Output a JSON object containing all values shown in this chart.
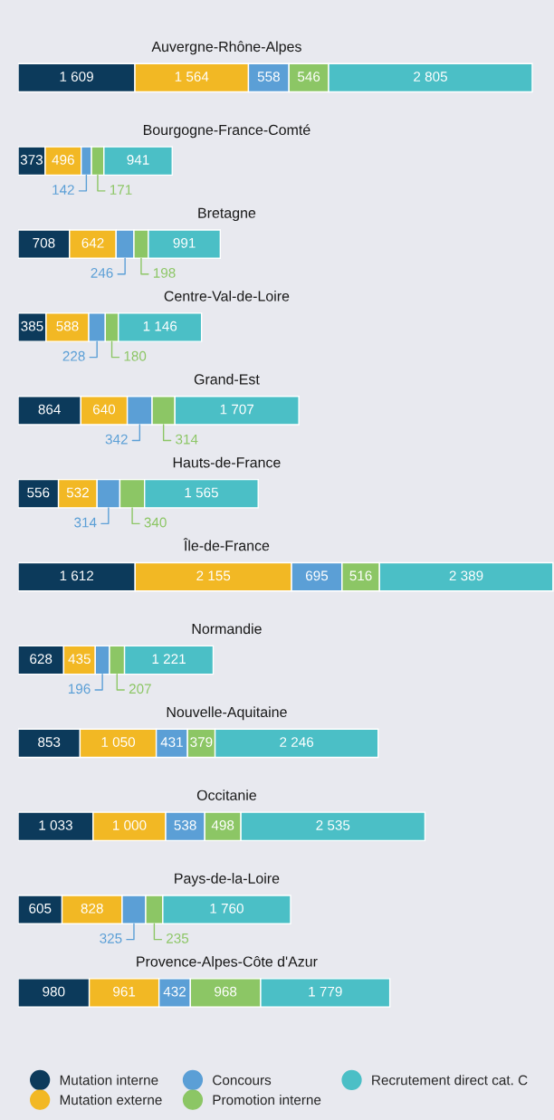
{
  "chart_data": {
    "type": "bar",
    "orientation": "horizontal",
    "stacked": true,
    "legend": "bottom",
    "categories": [
      "Auvergne-Rhône-Alpes",
      "Bourgogne-France-Comté",
      "Bretagne",
      "Centre-Val-de-Loire",
      "Grand-Est",
      "Hauts-de-France",
      "Île-de-France",
      "Normandie",
      "Nouvelle-Aquitaine",
      "Occitanie",
      "Pays-de-la-Loire",
      "Provence-Alpes-Côte d'Azur"
    ],
    "series": [
      {
        "name": "Mutation interne",
        "color": "#0c3a5b",
        "values": [
          1609,
          373,
          708,
          385,
          864,
          556,
          1612,
          628,
          853,
          1033,
          605,
          980
        ],
        "value_labels": [
          "1 609",
          "373",
          "708",
          "385",
          "864",
          "556",
          "1 612",
          "628",
          "853",
          "1 033",
          "605",
          "980"
        ]
      },
      {
        "name": "Mutation externe",
        "color": "#f2b824",
        "values": [
          1564,
          496,
          642,
          588,
          640,
          532,
          2155,
          435,
          1050,
          1000,
          828,
          961
        ],
        "value_labels": [
          "1 564",
          "496",
          "642",
          "588",
          "640",
          "532",
          "2 155",
          "435",
          "1 050",
          "1 000",
          "828",
          "961"
        ]
      },
      {
        "name": "Concours",
        "color": "#5b9fd6",
        "values": [
          558,
          142,
          246,
          228,
          342,
          314,
          695,
          196,
          431,
          538,
          325,
          432
        ],
        "value_labels": [
          "558",
          "142",
          "246",
          "228",
          "342",
          "314",
          "695",
          "196",
          "431",
          "538",
          "325",
          "432"
        ]
      },
      {
        "name": "Promotion interne",
        "color": "#8cc665",
        "values": [
          546,
          171,
          198,
          180,
          314,
          340,
          516,
          207,
          379,
          498,
          235,
          968
        ],
        "value_labels": [
          "546",
          "171",
          "198",
          "180",
          "314",
          "340",
          "516",
          "207",
          "379",
          "498",
          "235",
          "968"
        ]
      },
      {
        "name": "Recrutement direct cat. C",
        "color": "#4bbfc6",
        "values": [
          2805,
          941,
          991,
          1146,
          1707,
          1565,
          2389,
          1221,
          2246,
          2535,
          1760,
          1779
        ],
        "value_labels": [
          "2 805",
          "941",
          "991",
          "1 146",
          "1 707",
          "1 565",
          "2 389",
          "1 221",
          "2 246",
          "2 535",
          "1 760",
          "1 779"
        ]
      }
    ]
  }
}
